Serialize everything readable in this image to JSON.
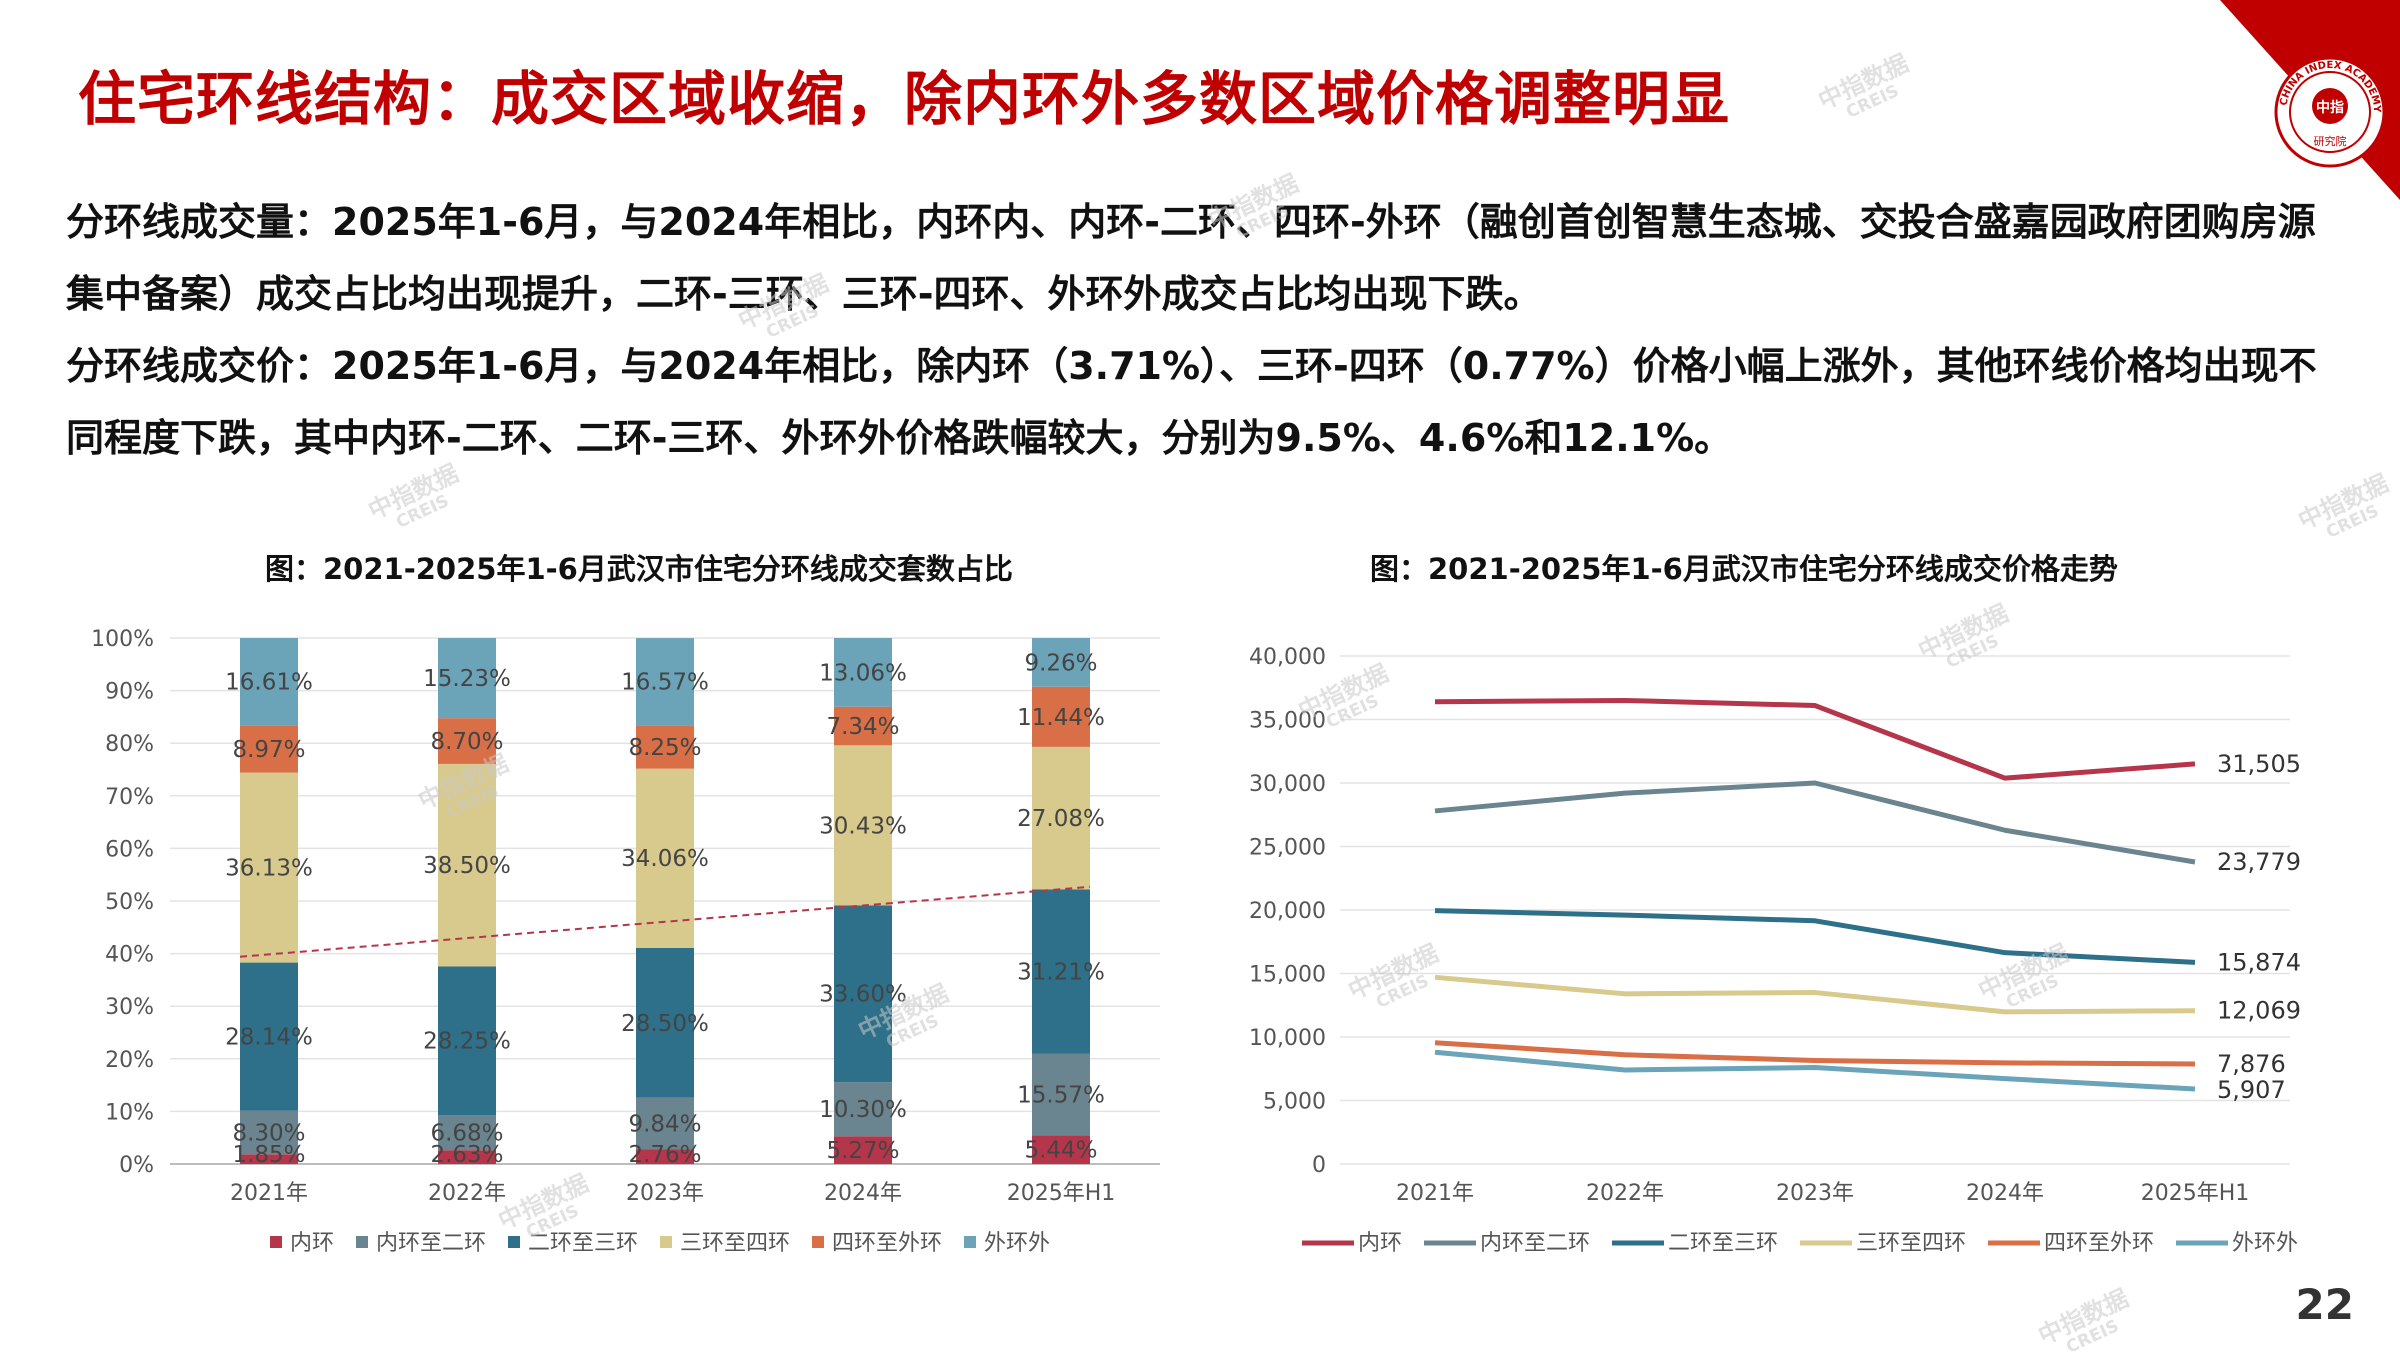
{
  "header": {
    "title": "住宅环线结构：成交区域收缩，除内环外多数区域价格调整明显"
  },
  "paragraphs": [
    {
      "label": "分环线成交量：",
      "text": "2025年1-6月，与2024年相比，内环内、内环-二环、四环-外环（融创首创智慧生态城、交投合盛嘉园政府团购房源集中备案）成交占比均出现提升，二环-三环、三环-四环、外环外成交占比均出现下跌。"
    },
    {
      "label": "分环线成交价：",
      "text": "2025年1-6月，与2024年相比，除内环（3.71%）、三环-四环（0.77%）价格小幅上涨外，其他环线价格均出现不同程度下跌，其中内环-二环、二环-三环、外环外价格跌幅较大，分别为9.5%、4.6%和12.1%。"
    }
  ],
  "watermark": {
    "cn": "中指数据",
    "en": "CREIS"
  },
  "logo": {
    "arc_text": "CHINA INDEX ACADEMY",
    "center": "中指",
    "bottom": "研究院"
  },
  "colors": {
    "inner": "#b5364b",
    "inner_second": "#6b8590",
    "second_third": "#2e7089",
    "third_fourth": "#d8c98c",
    "fourth_outer": "#d96f47",
    "outer": "#6ba3b8",
    "trend": "#b5364b",
    "title_red": "#c00000"
  },
  "page_number": "22",
  "chart_data": [
    {
      "type": "bar",
      "stacked": true,
      "title": "图：2021-2025年1-6月武汉市住宅分环线成交套数占比",
      "categories": [
        "2021年",
        "2022年",
        "2023年",
        "2024年",
        "2025年H1"
      ],
      "yticks": [
        "0%",
        "10%",
        "20%",
        "30%",
        "40%",
        "50%",
        "60%",
        "70%",
        "80%",
        "90%",
        "100%"
      ],
      "ylim": [
        0,
        100
      ],
      "legend_position": "bottom",
      "series": [
        {
          "name": "内环",
          "color": "#b5364b",
          "values": [
            1.85,
            2.63,
            2.76,
            5.27,
            5.44
          ],
          "labels": [
            "1.85%",
            "2.63%",
            "2.76%",
            "5.27%",
            "5.44%"
          ]
        },
        {
          "name": "内环至二环",
          "color": "#6b8590",
          "values": [
            8.3,
            6.68,
            9.84,
            10.3,
            15.57
          ],
          "labels": [
            "8.30%",
            "6.68%",
            "9.84%",
            "10.30%",
            "15.57%"
          ]
        },
        {
          "name": "二环至三环",
          "color": "#2e7089",
          "values": [
            28.14,
            28.25,
            28.5,
            33.6,
            31.21
          ],
          "labels": [
            "28.14%",
            "28.25%",
            "28.50%",
            "33.60%",
            "31.21%"
          ]
        },
        {
          "name": "三环至四环",
          "color": "#d8c98c",
          "values": [
            36.13,
            38.5,
            34.06,
            30.43,
            27.08
          ],
          "labels": [
            "36.13%",
            "38.50%",
            "34.06%",
            "30.43%",
            "27.08%"
          ]
        },
        {
          "name": "四环至外环",
          "color": "#d96f47",
          "values": [
            8.97,
            8.7,
            8.25,
            7.34,
            11.44
          ],
          "labels": [
            "8.97%",
            "8.70%",
            "8.25%",
            "7.34%",
            "11.44%"
          ]
        },
        {
          "name": "外环外",
          "color": "#6ba3b8",
          "values": [
            16.61,
            15.23,
            16.57,
            13.06,
            9.26
          ],
          "labels": [
            "16.61%",
            "15.23%",
            "16.57%",
            "13.06%",
            "9.26%"
          ]
        }
      ],
      "trendline": {
        "from": [
          0,
          39.4
        ],
        "to": [
          4,
          52.7
        ],
        "style": "dashed"
      }
    },
    {
      "type": "line",
      "title": "图：2021-2025年1-6月武汉市住宅分环线成交价格走势",
      "categories": [
        "2021年",
        "2022年",
        "2023年",
        "2024年",
        "2025年H1"
      ],
      "yticks": [
        "0",
        "5,000",
        "10,000",
        "15,000",
        "20,000",
        "25,000",
        "30,000",
        "35,000",
        "40,000"
      ],
      "ylim": [
        0,
        40000
      ],
      "legend_position": "bottom",
      "series": [
        {
          "name": "内环",
          "color": "#b5364b",
          "values": [
            36400,
            36500,
            36100,
            30380,
            31505
          ],
          "end_label": "31,505"
        },
        {
          "name": "内环至二环",
          "color": "#6b8590",
          "values": [
            27800,
            29200,
            30000,
            26280,
            23779
          ],
          "end_label": "23,779"
        },
        {
          "name": "二环至三环",
          "color": "#2e7089",
          "values": [
            19950,
            19600,
            19150,
            16640,
            15874
          ],
          "end_label": "15,874"
        },
        {
          "name": "三环至四环",
          "color": "#d8c98c",
          "values": [
            14700,
            13400,
            13500,
            11980,
            12069
          ],
          "end_label": "12,069"
        },
        {
          "name": "四环至外环",
          "color": "#d96f47",
          "values": [
            9550,
            8600,
            8150,
            7960,
            7876
          ],
          "end_label": "7,876"
        },
        {
          "name": "外环外",
          "color": "#6ba3b8",
          "values": [
            8800,
            7400,
            7600,
            6720,
            5907
          ],
          "end_label": "5,907"
        }
      ]
    }
  ]
}
